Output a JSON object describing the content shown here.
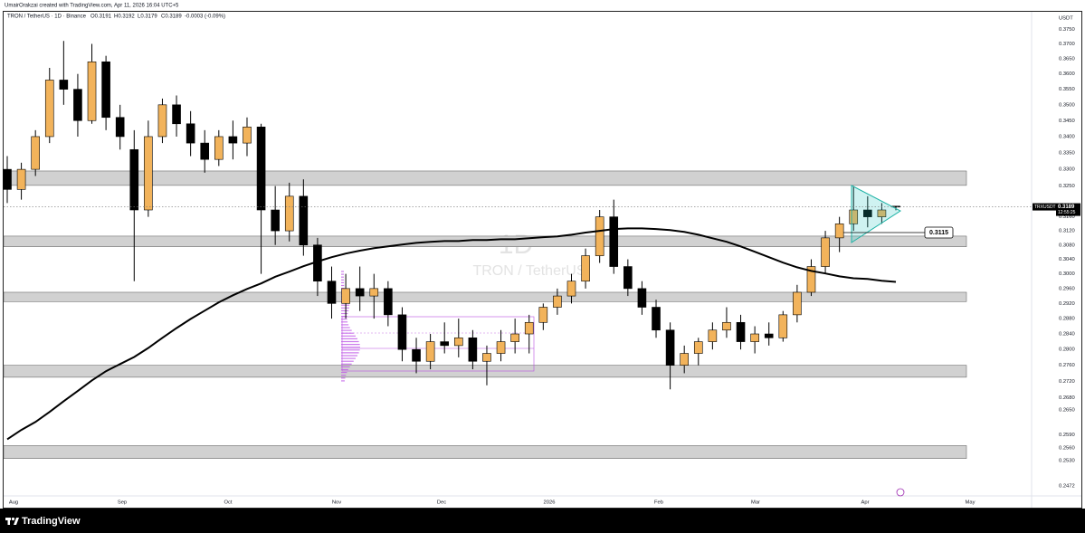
{
  "chart_data": {
    "type": "candlestick",
    "header": "UmairOrakzai created with TradingView.com, Apr 11, 2026 16:04 UTC+5",
    "symbol": "TRON / TetherUS · 1D · Binance",
    "ohlc_labels": [
      "O0.3191",
      "H0.3192",
      "L0.3179",
      "C0.3189"
    ],
    "change": "-0.0003 (-0.09%)",
    "watermark": [
      "1D",
      "TRON / TetherUS"
    ],
    "axis_unit": "USDT",
    "log_scale": true,
    "ylim": [
      0.245,
      0.381
    ],
    "yticks": [
      {
        "value": 0.375,
        "label": "0.3750"
      },
      {
        "value": 0.37,
        "label": "0.3700"
      },
      {
        "value": 0.365,
        "label": "0.3650"
      },
      {
        "value": 0.36,
        "label": "0.3600"
      },
      {
        "value": 0.355,
        "label": "0.3550"
      },
      {
        "value": 0.35,
        "label": "0.3500"
      },
      {
        "value": 0.345,
        "label": "0.3450"
      },
      {
        "value": 0.34,
        "label": "0.3400"
      },
      {
        "value": 0.335,
        "label": "0.3350"
      },
      {
        "value": 0.33,
        "label": "0.3300"
      },
      {
        "value": 0.325,
        "label": "0.3250"
      },
      {
        "value": 0.316,
        "label": "0.3160"
      },
      {
        "value": 0.312,
        "label": "0.3120"
      },
      {
        "value": 0.308,
        "label": "0.3080"
      },
      {
        "value": 0.304,
        "label": "0.3040"
      },
      {
        "value": 0.3,
        "label": "0.3000"
      },
      {
        "value": 0.296,
        "label": "0.2960"
      },
      {
        "value": 0.292,
        "label": "0.2920"
      },
      {
        "value": 0.288,
        "label": "0.2880"
      },
      {
        "value": 0.284,
        "label": "0.2840"
      },
      {
        "value": 0.28,
        "label": "0.2800"
      },
      {
        "value": 0.276,
        "label": "0.2760"
      },
      {
        "value": 0.272,
        "label": "0.2720"
      },
      {
        "value": 0.268,
        "label": "0.2680"
      },
      {
        "value": 0.265,
        "label": "0.2650"
      },
      {
        "value": 0.259,
        "label": "0.2590"
      },
      {
        "value": 0.256,
        "label": "0.2560"
      },
      {
        "value": 0.253,
        "label": "0.2530"
      },
      0.2472
    ],
    "time_labels": [
      "Aug",
      "Sep",
      "Oct",
      "Nov",
      "Dec",
      "2026",
      "Feb",
      "Mar",
      "Apr",
      "May"
    ],
    "up_color": "#f2b35b",
    "down_color": "#000000",
    "open": [
      0.33,
      0.324,
      0.33,
      0.34,
      0.358,
      0.355,
      0.345,
      0.364,
      0.346,
      0.336,
      0.318,
      0.34,
      0.35,
      0.344,
      0.338,
      0.333,
      0.34,
      0.338,
      0.343,
      0.318,
      0.312,
      0.322,
      0.308,
      0.298,
      0.292,
      0.296,
      0.294,
      0.296,
      0.289,
      0.28,
      0.277,
      0.282,
      0.281,
      0.283,
      0.277,
      0.279,
      0.282,
      0.284,
      0.287,
      0.291,
      0.294,
      0.298,
      0.305,
      0.316,
      0.302,
      0.296,
      0.291,
      0.285,
      0.276,
      0.279,
      0.282,
      0.285,
      0.287,
      0.282,
      0.284,
      0.283,
      0.289,
      0.295,
      0.302,
      0.31,
      0.314,
      0.318,
      0.316,
      0.3191
    ],
    "high": [
      0.334,
      0.332,
      0.342,
      0.362,
      0.371,
      0.36,
      0.37,
      0.366,
      0.35,
      0.342,
      0.345,
      0.352,
      0.353,
      0.348,
      0.342,
      0.342,
      0.345,
      0.346,
      0.344,
      0.325,
      0.326,
      0.327,
      0.31,
      0.302,
      0.3,
      0.302,
      0.3,
      0.298,
      0.291,
      0.283,
      0.284,
      0.287,
      0.288,
      0.285,
      0.281,
      0.285,
      0.288,
      0.289,
      0.292,
      0.296,
      0.3,
      0.307,
      0.318,
      0.321,
      0.304,
      0.298,
      0.293,
      0.287,
      0.281,
      0.283,
      0.287,
      0.291,
      0.289,
      0.286,
      0.287,
      0.29,
      0.297,
      0.304,
      0.312,
      0.316,
      0.325,
      0.322,
      0.32,
      0.3192
    ],
    "low": [
      0.32,
      0.321,
      0.328,
      0.338,
      0.35,
      0.34,
      0.344,
      0.342,
      0.336,
      0.298,
      0.316,
      0.338,
      0.34,
      0.334,
      0.329,
      0.331,
      0.333,
      0.334,
      0.3,
      0.308,
      0.309,
      0.305,
      0.294,
      0.288,
      0.288,
      0.29,
      0.288,
      0.286,
      0.277,
      0.274,
      0.275,
      0.279,
      0.278,
      0.275,
      0.271,
      0.277,
      0.279,
      0.279,
      0.285,
      0.289,
      0.292,
      0.296,
      0.303,
      0.3,
      0.294,
      0.289,
      0.283,
      0.27,
      0.274,
      0.276,
      0.28,
      0.283,
      0.28,
      0.279,
      0.281,
      0.282,
      0.287,
      0.294,
      0.3,
      0.306,
      0.312,
      0.313,
      0.314,
      0.3179
    ],
    "close": [
      0.324,
      0.33,
      0.34,
      0.358,
      0.355,
      0.345,
      0.364,
      0.346,
      0.34,
      0.318,
      0.34,
      0.35,
      0.344,
      0.338,
      0.333,
      0.34,
      0.338,
      0.343,
      0.318,
      0.312,
      0.322,
      0.308,
      0.298,
      0.292,
      0.296,
      0.294,
      0.296,
      0.289,
      0.28,
      0.277,
      0.282,
      0.281,
      0.283,
      0.277,
      0.279,
      0.282,
      0.284,
      0.287,
      0.291,
      0.294,
      0.298,
      0.305,
      0.316,
      0.302,
      0.296,
      0.291,
      0.285,
      0.276,
      0.279,
      0.282,
      0.285,
      0.287,
      0.282,
      0.284,
      0.283,
      0.289,
      0.295,
      0.302,
      0.31,
      0.314,
      0.318,
      0.316,
      0.318,
      0.3189
    ],
    "ma_color": "#000000",
    "ma_values": [
      0.258,
      0.2602,
      0.2621,
      0.2645,
      0.2671,
      0.2696,
      0.2722,
      0.2745,
      0.2763,
      0.2781,
      0.2804,
      0.283,
      0.2855,
      0.2879,
      0.2901,
      0.2923,
      0.2942,
      0.2959,
      0.2974,
      0.2992,
      0.3006,
      0.3021,
      0.3034,
      0.3046,
      0.3056,
      0.3064,
      0.3071,
      0.3076,
      0.3081,
      0.3086,
      0.3089,
      0.3091,
      0.3091,
      0.3094,
      0.3094,
      0.3096,
      0.3096,
      0.3099,
      0.3102,
      0.3104,
      0.3109,
      0.3115,
      0.312,
      0.3125,
      0.3127,
      0.3127,
      0.3125,
      0.3122,
      0.3117,
      0.3109,
      0.3099,
      0.3089,
      0.3076,
      0.3061,
      0.3046,
      0.3031,
      0.3018,
      0.3008,
      0.3001,
      0.2993,
      0.2988,
      0.2986,
      0.2981,
      0.2978
    ],
    "zone_color": "#d1d1d1",
    "zones": [
      [
        0.3252,
        0.3295
      ],
      [
        0.3075,
        0.3105
      ],
      [
        0.2925,
        0.295
      ],
      [
        0.273,
        0.276
      ],
      [
        0.2535,
        0.2565
      ]
    ],
    "price_tag": "TRXUSDT",
    "last_price": 0.3189,
    "countdown": "12:55:25",
    "level": 0.3115,
    "footer_brand": "TradingView"
  }
}
